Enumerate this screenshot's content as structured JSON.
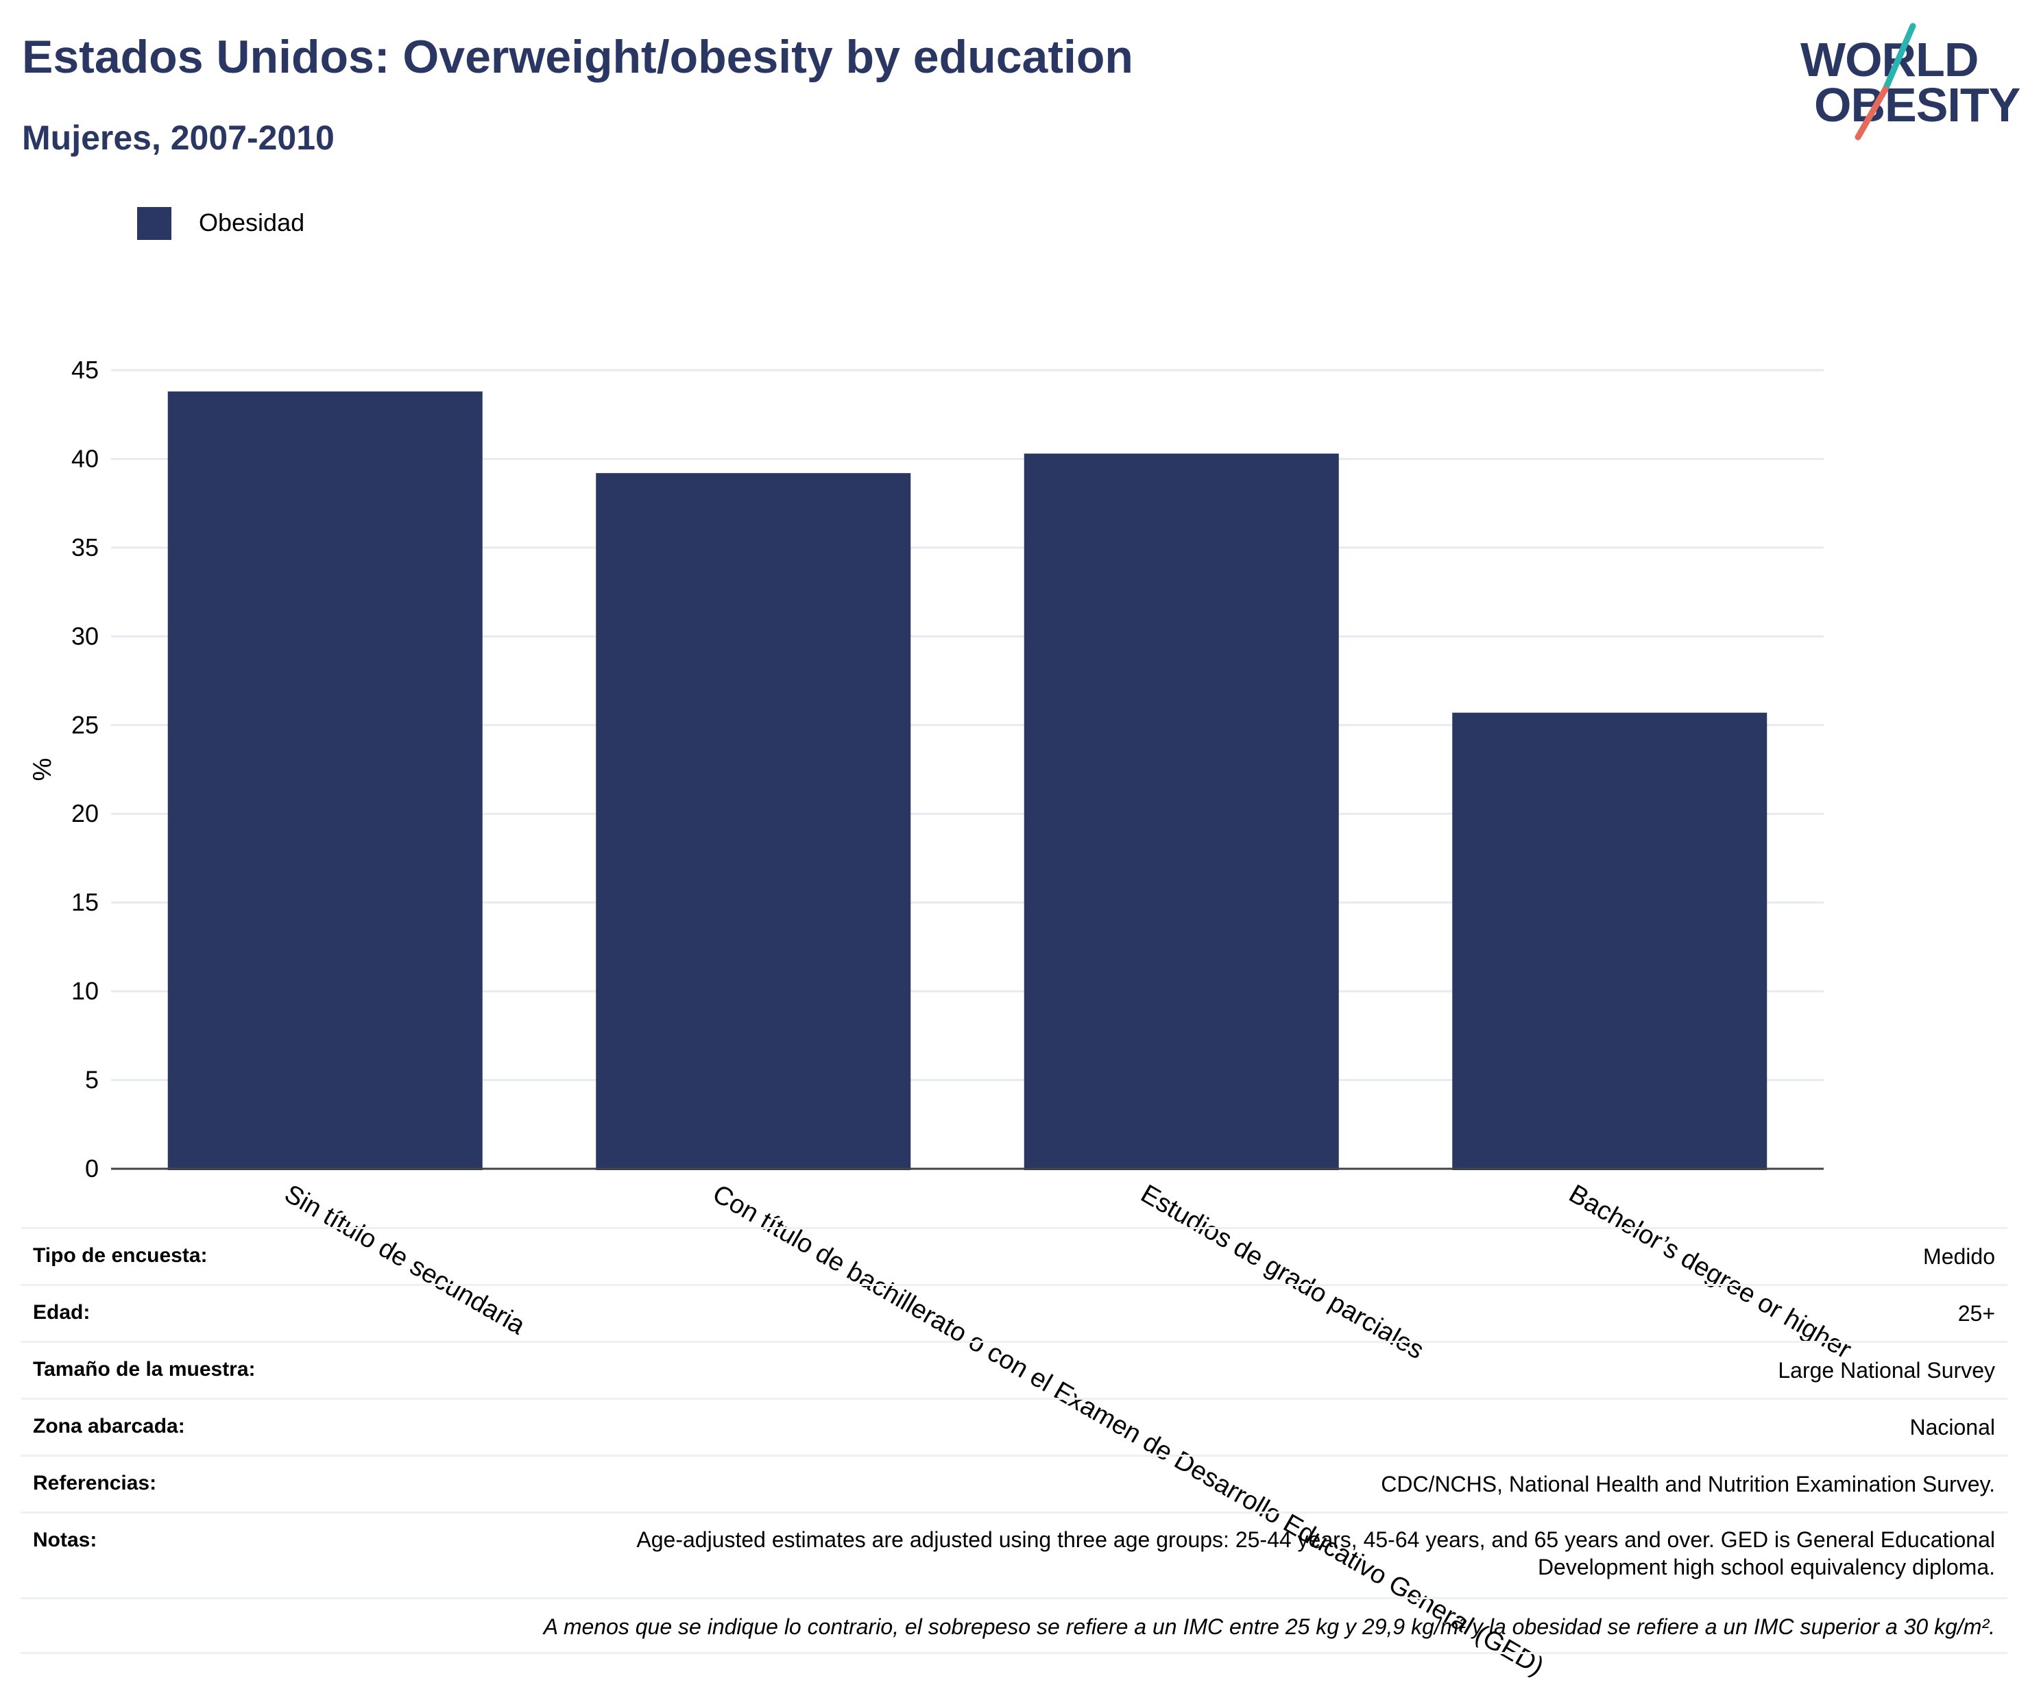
{
  "title": "Estados Unidos: Overweight/obesity by education",
  "subtitle": "Mujeres, 2007-2010",
  "logo": {
    "line1": "WORLD",
    "line2": "OBESITY",
    "text_color": "#2b3763",
    "slash_colors": [
      "#2bb3b0",
      "#e56a5b"
    ]
  },
  "legend": {
    "items": [
      {
        "label": "Obesidad",
        "color": "#2b3763"
      }
    ]
  },
  "chart_data": {
    "type": "bar",
    "categories": [
      "Sin título de secundaria",
      "Con título de bachillerato o con el Examen de Desarrollo Educativo General (GED)",
      "Estudios de grado parciales",
      "Bachelor’s degree or higher"
    ],
    "series": [
      {
        "name": "Obesidad",
        "color": "#2b3763",
        "values": [
          43.8,
          39.2,
          40.3,
          25.7
        ]
      }
    ],
    "ylabel": "%",
    "xlabel": "",
    "ylim": [
      0,
      45
    ],
    "yticks": [
      0,
      5,
      10,
      15,
      20,
      25,
      30,
      35,
      40,
      45
    ],
    "grid": true,
    "legend_position": "top-left"
  },
  "info": {
    "rows": [
      {
        "key": "Tipo de encuesta:",
        "value": "Medido"
      },
      {
        "key": "Edad:",
        "value": "25+"
      },
      {
        "key": "Tamaño de la muestra:",
        "value": "Large National Survey"
      },
      {
        "key": "Zona abarcada:",
        "value": "Nacional"
      },
      {
        "key": "Referencias:",
        "value": "CDC/NCHS, National Health and Nutrition Examination Survey."
      },
      {
        "key": "Notas:",
        "value": "Age-adjusted estimates are adjusted using three age groups: 25-44 years, 45-64 years, and 65 years and over. GED is General Educational Development high school equivalency diploma."
      }
    ],
    "disclaimer": "A menos que se indique lo contrario, el sobrepeso se refiere a un IMC entre 25 kg y 29,9 kg/m² y la obesidad se refiere a un IMC superior a 30 kg/m²."
  }
}
